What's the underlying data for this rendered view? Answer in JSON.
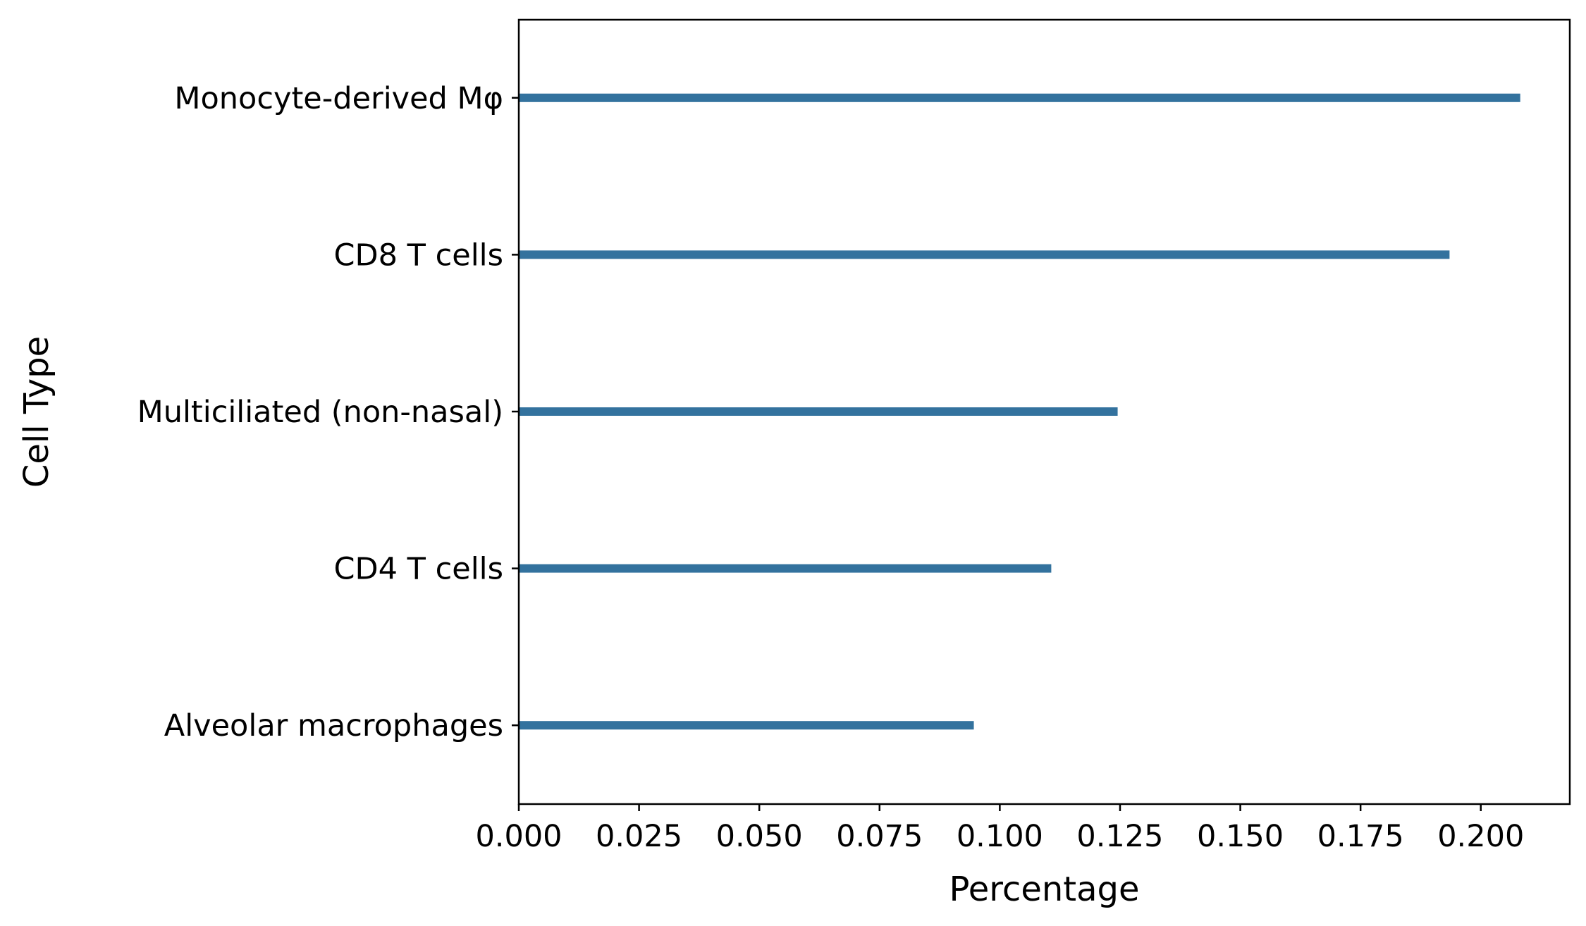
{
  "chart_data": {
    "type": "bar",
    "orientation": "horizontal",
    "categories": [
      "Monocyte-derived Mφ",
      "CD8 T cells",
      "Multiciliated (non-nasal)",
      "CD4 T cells",
      "Alveolar macrophages"
    ],
    "values": [
      0.2082,
      0.1935,
      0.1245,
      0.1107,
      0.0946
    ],
    "xlabel": "Percentage",
    "ylabel": "Cell Type",
    "xlim": [
      0,
      0.2185
    ],
    "xticks": [
      "0.000",
      "0.025",
      "0.050",
      "0.075",
      "0.100",
      "0.125",
      "0.150",
      "0.175",
      "0.200"
    ],
    "xtick_values": [
      0,
      0.025,
      0.05,
      0.075,
      0.1,
      0.125,
      0.15,
      0.175,
      0.2
    ],
    "bar_color": "#33729e",
    "grid": false,
    "legend": "none"
  }
}
